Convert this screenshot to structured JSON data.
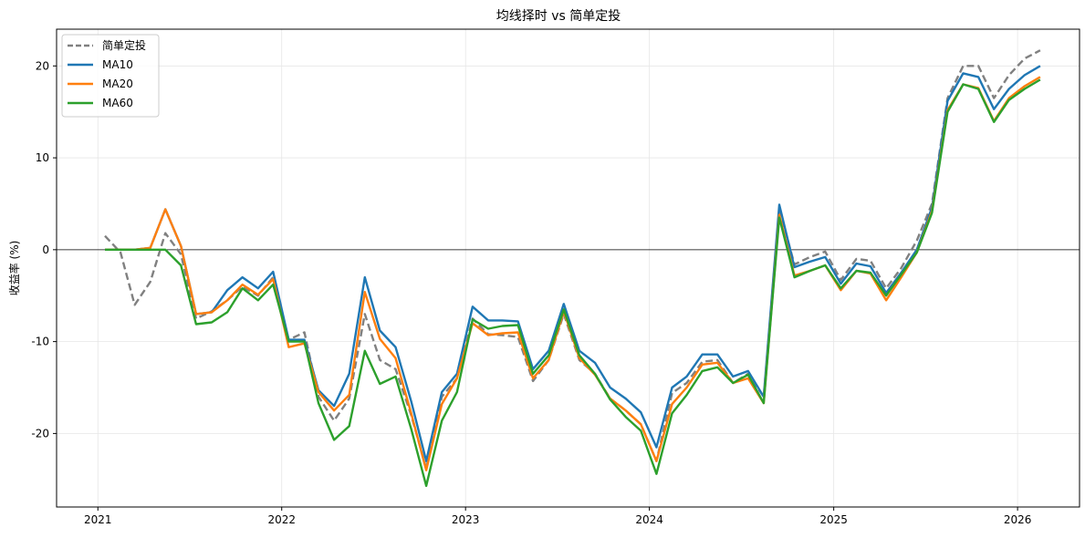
{
  "chart_data": {
    "type": "line",
    "title": "均线择时 vs 简单定投",
    "xlabel": "",
    "ylabel": "收益率 (%)",
    "xlim": [
      "2020-10-11",
      "2026-05-04"
    ],
    "ylim": [
      -28,
      24
    ],
    "x_ticks": [
      "2021",
      "2022",
      "2023",
      "2024",
      "2025",
      "2026"
    ],
    "y_ticks": [
      -20,
      -10,
      0,
      10,
      20
    ],
    "y_tick_labels": [
      "-20",
      "-10",
      "0",
      "10",
      "20"
    ],
    "grid": true,
    "zero_line": true,
    "legend_position": "top-left",
    "x": [
      "2021-01",
      "2021-02",
      "2021-03",
      "2021-04",
      "2021-05",
      "2021-06",
      "2021-07",
      "2021-08",
      "2021-09",
      "2021-10",
      "2021-11",
      "2021-12",
      "2022-01",
      "2022-02",
      "2022-03",
      "2022-04",
      "2022-05",
      "2022-06",
      "2022-07",
      "2022-08",
      "2022-09",
      "2022-10",
      "2022-11",
      "2022-12",
      "2023-01",
      "2023-02",
      "2023-03",
      "2023-04",
      "2023-05",
      "2023-06",
      "2023-07",
      "2023-08",
      "2023-09",
      "2023-10",
      "2023-11",
      "2023-12",
      "2024-01",
      "2024-02",
      "2024-03",
      "2024-04",
      "2024-05",
      "2024-06",
      "2024-07",
      "2024-08",
      "2024-09",
      "2024-10",
      "2024-11",
      "2024-12",
      "2025-01",
      "2025-02",
      "2025-03",
      "2025-04",
      "2025-05",
      "2025-06",
      "2025-07",
      "2025-08",
      "2025-09",
      "2025-10",
      "2025-11",
      "2025-12",
      "2026-01",
      "2026-02"
    ],
    "series": [
      {
        "name": "简单定投",
        "color": "#808080",
        "dash": true,
        "values": [
          1.5,
          -0.3,
          -6.0,
          -3.5,
          1.8,
          -0.5,
          -7.5,
          -6.7,
          -5.5,
          -4.0,
          -5.0,
          -3.0,
          -9.8,
          -9.0,
          -16.0,
          -18.6,
          -16.2,
          -7.0,
          -12.0,
          -13.0,
          -18.0,
          -23.8,
          -16.0,
          -14.0,
          -7.5,
          -9.2,
          -9.3,
          -9.5,
          -14.3,
          -12.0,
          -7.0,
          -12.0,
          -13.5,
          -16.2,
          -17.5,
          -19.0,
          -23.0,
          -15.6,
          -14.5,
          -12.2,
          -12.0,
          -14.5,
          -13.5,
          -16.0,
          4.4,
          -1.6,
          -0.8,
          -0.2,
          -3.3,
          -1.0,
          -1.2,
          -4.2,
          -2.0,
          1.0,
          5.0,
          16.5,
          20.0,
          20.0,
          16.5,
          19.0,
          20.8,
          21.7
        ]
      },
      {
        "name": "MA10",
        "color": "#1f77b4",
        "dash": false,
        "values": [
          0.0,
          0.0,
          0.0,
          0.2,
          4.4,
          0.4,
          -7.0,
          -6.8,
          -4.4,
          -3.0,
          -4.2,
          -2.4,
          -9.8,
          -9.8,
          -15.3,
          -17.0,
          -13.5,
          -3.0,
          -8.8,
          -10.6,
          -16.5,
          -23.0,
          -15.5,
          -13.5,
          -6.2,
          -7.7,
          -7.7,
          -7.8,
          -13.0,
          -11.0,
          -5.9,
          -11.0,
          -12.3,
          -15.0,
          -16.2,
          -17.7,
          -21.5,
          -15.0,
          -13.8,
          -11.4,
          -11.4,
          -13.8,
          -13.2,
          -16.0,
          4.9,
          -1.9,
          -1.3,
          -0.8,
          -3.7,
          -1.5,
          -1.8,
          -4.7,
          -2.5,
          0.0,
          4.6,
          16.2,
          19.2,
          18.8,
          15.3,
          17.5,
          19.0,
          20.0
        ]
      },
      {
        "name": "MA20",
        "color": "#ff7f0e",
        "dash": false,
        "values": [
          0.0,
          0.0,
          0.0,
          0.2,
          4.4,
          0.4,
          -7.0,
          -6.8,
          -5.5,
          -3.8,
          -4.9,
          -3.2,
          -10.6,
          -10.2,
          -15.5,
          -17.5,
          -15.8,
          -4.6,
          -9.7,
          -11.8,
          -17.8,
          -24.0,
          -16.8,
          -14.0,
          -8.0,
          -9.3,
          -9.1,
          -9.0,
          -14.0,
          -12.0,
          -6.7,
          -11.8,
          -13.6,
          -16.2,
          -17.5,
          -19.0,
          -23.0,
          -16.8,
          -15.0,
          -12.5,
          -12.3,
          -14.5,
          -14.0,
          -16.7,
          3.8,
          -2.8,
          -2.3,
          -1.7,
          -4.4,
          -2.3,
          -2.6,
          -5.5,
          -3.0,
          -0.3,
          4.2,
          15.2,
          18.0,
          17.6,
          14.0,
          16.5,
          17.8,
          18.8
        ]
      },
      {
        "name": "MA60",
        "color": "#2ca02c",
        "dash": false,
        "values": [
          0.0,
          0.0,
          0.0,
          0.0,
          0.0,
          -1.7,
          -8.1,
          -7.9,
          -6.8,
          -4.2,
          -5.5,
          -3.8,
          -10.0,
          -10.0,
          -16.7,
          -20.7,
          -19.2,
          -11.0,
          -14.6,
          -13.8,
          -19.5,
          -25.7,
          -18.6,
          -15.5,
          -7.6,
          -8.6,
          -8.3,
          -8.2,
          -13.5,
          -11.5,
          -6.5,
          -11.5,
          -13.5,
          -16.3,
          -18.2,
          -19.7,
          -24.4,
          -17.8,
          -15.8,
          -13.2,
          -12.8,
          -14.5,
          -13.6,
          -16.7,
          3.5,
          -3.0,
          -2.3,
          -1.7,
          -4.2,
          -2.3,
          -2.5,
          -5.0,
          -2.7,
          -0.3,
          4.0,
          15.0,
          18.0,
          17.5,
          13.9,
          16.3,
          17.5,
          18.5
        ]
      }
    ]
  }
}
